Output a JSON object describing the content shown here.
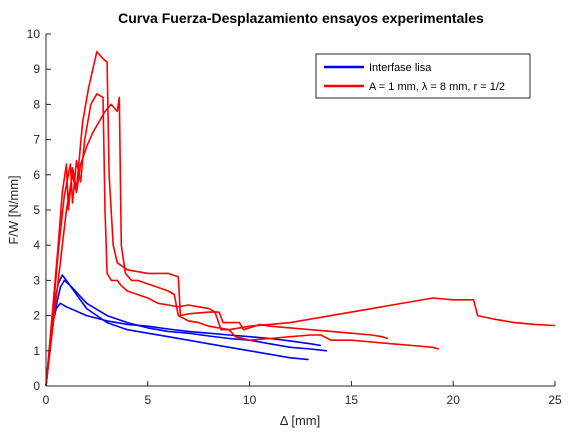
{
  "chart_data": {
    "type": "line",
    "title": "Curva Fuerza-Desplazamiento ensayos experimentales",
    "xlabel": "Δ [mm]",
    "ylabel": "F/W [N/mm]",
    "xlim": [
      0,
      25
    ],
    "ylim": [
      0,
      10
    ],
    "xticks": [
      0,
      5,
      10,
      15,
      20,
      25
    ],
    "yticks": [
      0,
      1,
      2,
      3,
      4,
      5,
      6,
      7,
      8,
      9,
      10
    ],
    "grid": false,
    "legend_position": "top-right",
    "series": [
      {
        "name": "Interfase lisa",
        "color": "#0000ff",
        "curves": [
          [
            [
              0,
              0
            ],
            [
              0.15,
              0.9
            ],
            [
              0.3,
              1.7
            ],
            [
              0.5,
              2.2
            ],
            [
              0.7,
              2.35
            ],
            [
              1,
              2.25
            ],
            [
              2,
              2.0
            ],
            [
              3,
              1.85
            ],
            [
              4,
              1.75
            ],
            [
              5,
              1.7
            ],
            [
              6,
              1.62
            ],
            [
              7,
              1.55
            ],
            [
              8,
              1.5
            ],
            [
              9,
              1.45
            ],
            [
              10,
              1.4
            ],
            [
              11,
              1.35
            ],
            [
              12,
              1.28
            ],
            [
              13,
              1.2
            ],
            [
              13.5,
              1.15
            ]
          ],
          [
            [
              0,
              0
            ],
            [
              0.2,
              1.2
            ],
            [
              0.4,
              2.3
            ],
            [
              0.6,
              2.9
            ],
            [
              0.8,
              3.15
            ],
            [
              1.0,
              3.0
            ],
            [
              1.5,
              2.6
            ],
            [
              2,
              2.2
            ],
            [
              3,
              1.8
            ],
            [
              4,
              1.6
            ],
            [
              5,
              1.5
            ],
            [
              6,
              1.4
            ],
            [
              7,
              1.3
            ],
            [
              8,
              1.2
            ],
            [
              9,
              1.1
            ],
            [
              10,
              1.0
            ],
            [
              11,
              0.9
            ],
            [
              12,
              0.8
            ],
            [
              12.9,
              0.75
            ]
          ],
          [
            [
              0,
              0
            ],
            [
              0.2,
              1.1
            ],
            [
              0.4,
              2.0
            ],
            [
              0.7,
              2.8
            ],
            [
              0.9,
              3.0
            ],
            [
              1.2,
              2.85
            ],
            [
              2,
              2.35
            ],
            [
              3,
              2.0
            ],
            [
              4,
              1.8
            ],
            [
              5,
              1.65
            ],
            [
              6,
              1.55
            ],
            [
              7,
              1.5
            ],
            [
              8,
              1.42
            ],
            [
              9,
              1.35
            ],
            [
              10,
              1.3
            ],
            [
              11,
              1.2
            ],
            [
              12,
              1.1
            ],
            [
              13,
              1.05
            ],
            [
              13.8,
              1.0
            ]
          ]
        ]
      },
      {
        "name": "A = 1 mm, λ = 8 mm, r = 1/2",
        "color": "#ff0000",
        "curves": [
          [
            [
              0,
              0
            ],
            [
              0.3,
              2.0
            ],
            [
              0.6,
              4.0
            ],
            [
              0.8,
              5.5
            ],
            [
              1.0,
              6.3
            ],
            [
              1.1,
              5.0
            ],
            [
              1.3,
              6.2
            ],
            [
              1.5,
              5.6
            ],
            [
              1.8,
              7.5
            ],
            [
              2.1,
              8.5
            ],
            [
              2.3,
              9.0
            ],
            [
              2.5,
              9.5
            ],
            [
              2.8,
              9.3
            ],
            [
              3.0,
              9.2
            ],
            [
              3.1,
              6.0
            ],
            [
              3.3,
              4.0
            ],
            [
              3.5,
              3.5
            ],
            [
              4,
              3.3
            ],
            [
              5,
              3.2
            ],
            [
              6,
              3.2
            ],
            [
              6.5,
              3.1
            ],
            [
              6.6,
              2.0
            ],
            [
              7,
              2.05
            ],
            [
              8,
              2.1
            ],
            [
              8.5,
              2.1
            ],
            [
              8.7,
              1.8
            ],
            [
              9,
              1.8
            ],
            [
              9.5,
              1.8
            ],
            [
              9.7,
              1.6
            ],
            [
              10,
              1.65
            ],
            [
              10.5,
              1.75
            ],
            [
              11,
              1.7
            ],
            [
              12,
              1.65
            ],
            [
              13,
              1.6
            ],
            [
              14,
              1.55
            ],
            [
              15,
              1.5
            ],
            [
              16,
              1.45
            ],
            [
              16.5,
              1.4
            ],
            [
              16.8,
              1.35
            ]
          ],
          [
            [
              0,
              0
            ],
            [
              0.3,
              1.8
            ],
            [
              0.6,
              3.8
            ],
            [
              0.9,
              5.4
            ],
            [
              1.2,
              6.3
            ],
            [
              1.3,
              5.2
            ],
            [
              1.5,
              6.4
            ],
            [
              1.7,
              5.8
            ],
            [
              1.9,
              7.0
            ],
            [
              2.2,
              8.0
            ],
            [
              2.5,
              8.3
            ],
            [
              2.8,
              8.2
            ],
            [
              2.9,
              5.0
            ],
            [
              3.0,
              3.2
            ],
            [
              3.2,
              3.0
            ],
            [
              3.5,
              3.0
            ],
            [
              3.7,
              2.85
            ],
            [
              4,
              2.7
            ],
            [
              4.5,
              2.6
            ],
            [
              5,
              2.5
            ],
            [
              5.5,
              2.35
            ],
            [
              6,
              2.3
            ],
            [
              6.5,
              2.25
            ],
            [
              7,
              2.3
            ],
            [
              7.5,
              2.25
            ],
            [
              8,
              2.2
            ],
            [
              8.3,
              2.1
            ],
            [
              8.6,
              1.6
            ],
            [
              9,
              1.6
            ],
            [
              10,
              1.7
            ],
            [
              11,
              1.75
            ],
            [
              12,
              1.8
            ],
            [
              13,
              1.9
            ],
            [
              14,
              2.0
            ],
            [
              15,
              2.1
            ],
            [
              16,
              2.2
            ],
            [
              17,
              2.3
            ],
            [
              18,
              2.4
            ],
            [
              19,
              2.5
            ],
            [
              20,
              2.45
            ],
            [
              21,
              2.45
            ],
            [
              21.2,
              2.0
            ],
            [
              22,
              1.9
            ],
            [
              23,
              1.8
            ],
            [
              24,
              1.75
            ],
            [
              25,
              1.72
            ]
          ],
          [
            [
              0,
              0
            ],
            [
              0.3,
              1.5
            ],
            [
              0.7,
              3.5
            ],
            [
              1.0,
              5.0
            ],
            [
              1.3,
              6.0
            ],
            [
              1.5,
              5.5
            ],
            [
              1.7,
              6.3
            ],
            [
              2.0,
              6.8
            ],
            [
              2.3,
              7.2
            ],
            [
              2.6,
              7.5
            ],
            [
              2.9,
              7.8
            ],
            [
              3.2,
              8.0
            ],
            [
              3.5,
              7.8
            ],
            [
              3.6,
              8.2
            ],
            [
              3.7,
              4.0
            ],
            [
              3.9,
              3.2
            ],
            [
              4.2,
              3.0
            ],
            [
              4.5,
              3.0
            ],
            [
              5,
              2.9
            ],
            [
              5.5,
              2.8
            ],
            [
              6,
              2.7
            ],
            [
              6.3,
              2.6
            ],
            [
              6.5,
              2.0
            ],
            [
              7,
              1.85
            ],
            [
              7.5,
              1.8
            ],
            [
              8,
              1.7
            ],
            [
              8.5,
              1.65
            ],
            [
              9,
              1.6
            ],
            [
              9.3,
              1.4
            ],
            [
              10,
              1.3
            ],
            [
              11,
              1.35
            ],
            [
              12,
              1.4
            ],
            [
              13,
              1.45
            ],
            [
              13.5,
              1.45
            ],
            [
              14,
              1.3
            ],
            [
              15,
              1.3
            ],
            [
              16,
              1.25
            ],
            [
              17,
              1.2
            ],
            [
              18,
              1.15
            ],
            [
              19,
              1.1
            ],
            [
              19.3,
              1.05
            ]
          ]
        ]
      }
    ]
  },
  "legend": {
    "entries": [
      {
        "label": "Interfase lisa",
        "color": "#0000ff"
      },
      {
        "label": "A = 1 mm, λ = 8 mm, r = 1/2",
        "color": "#ff0000"
      }
    ]
  }
}
